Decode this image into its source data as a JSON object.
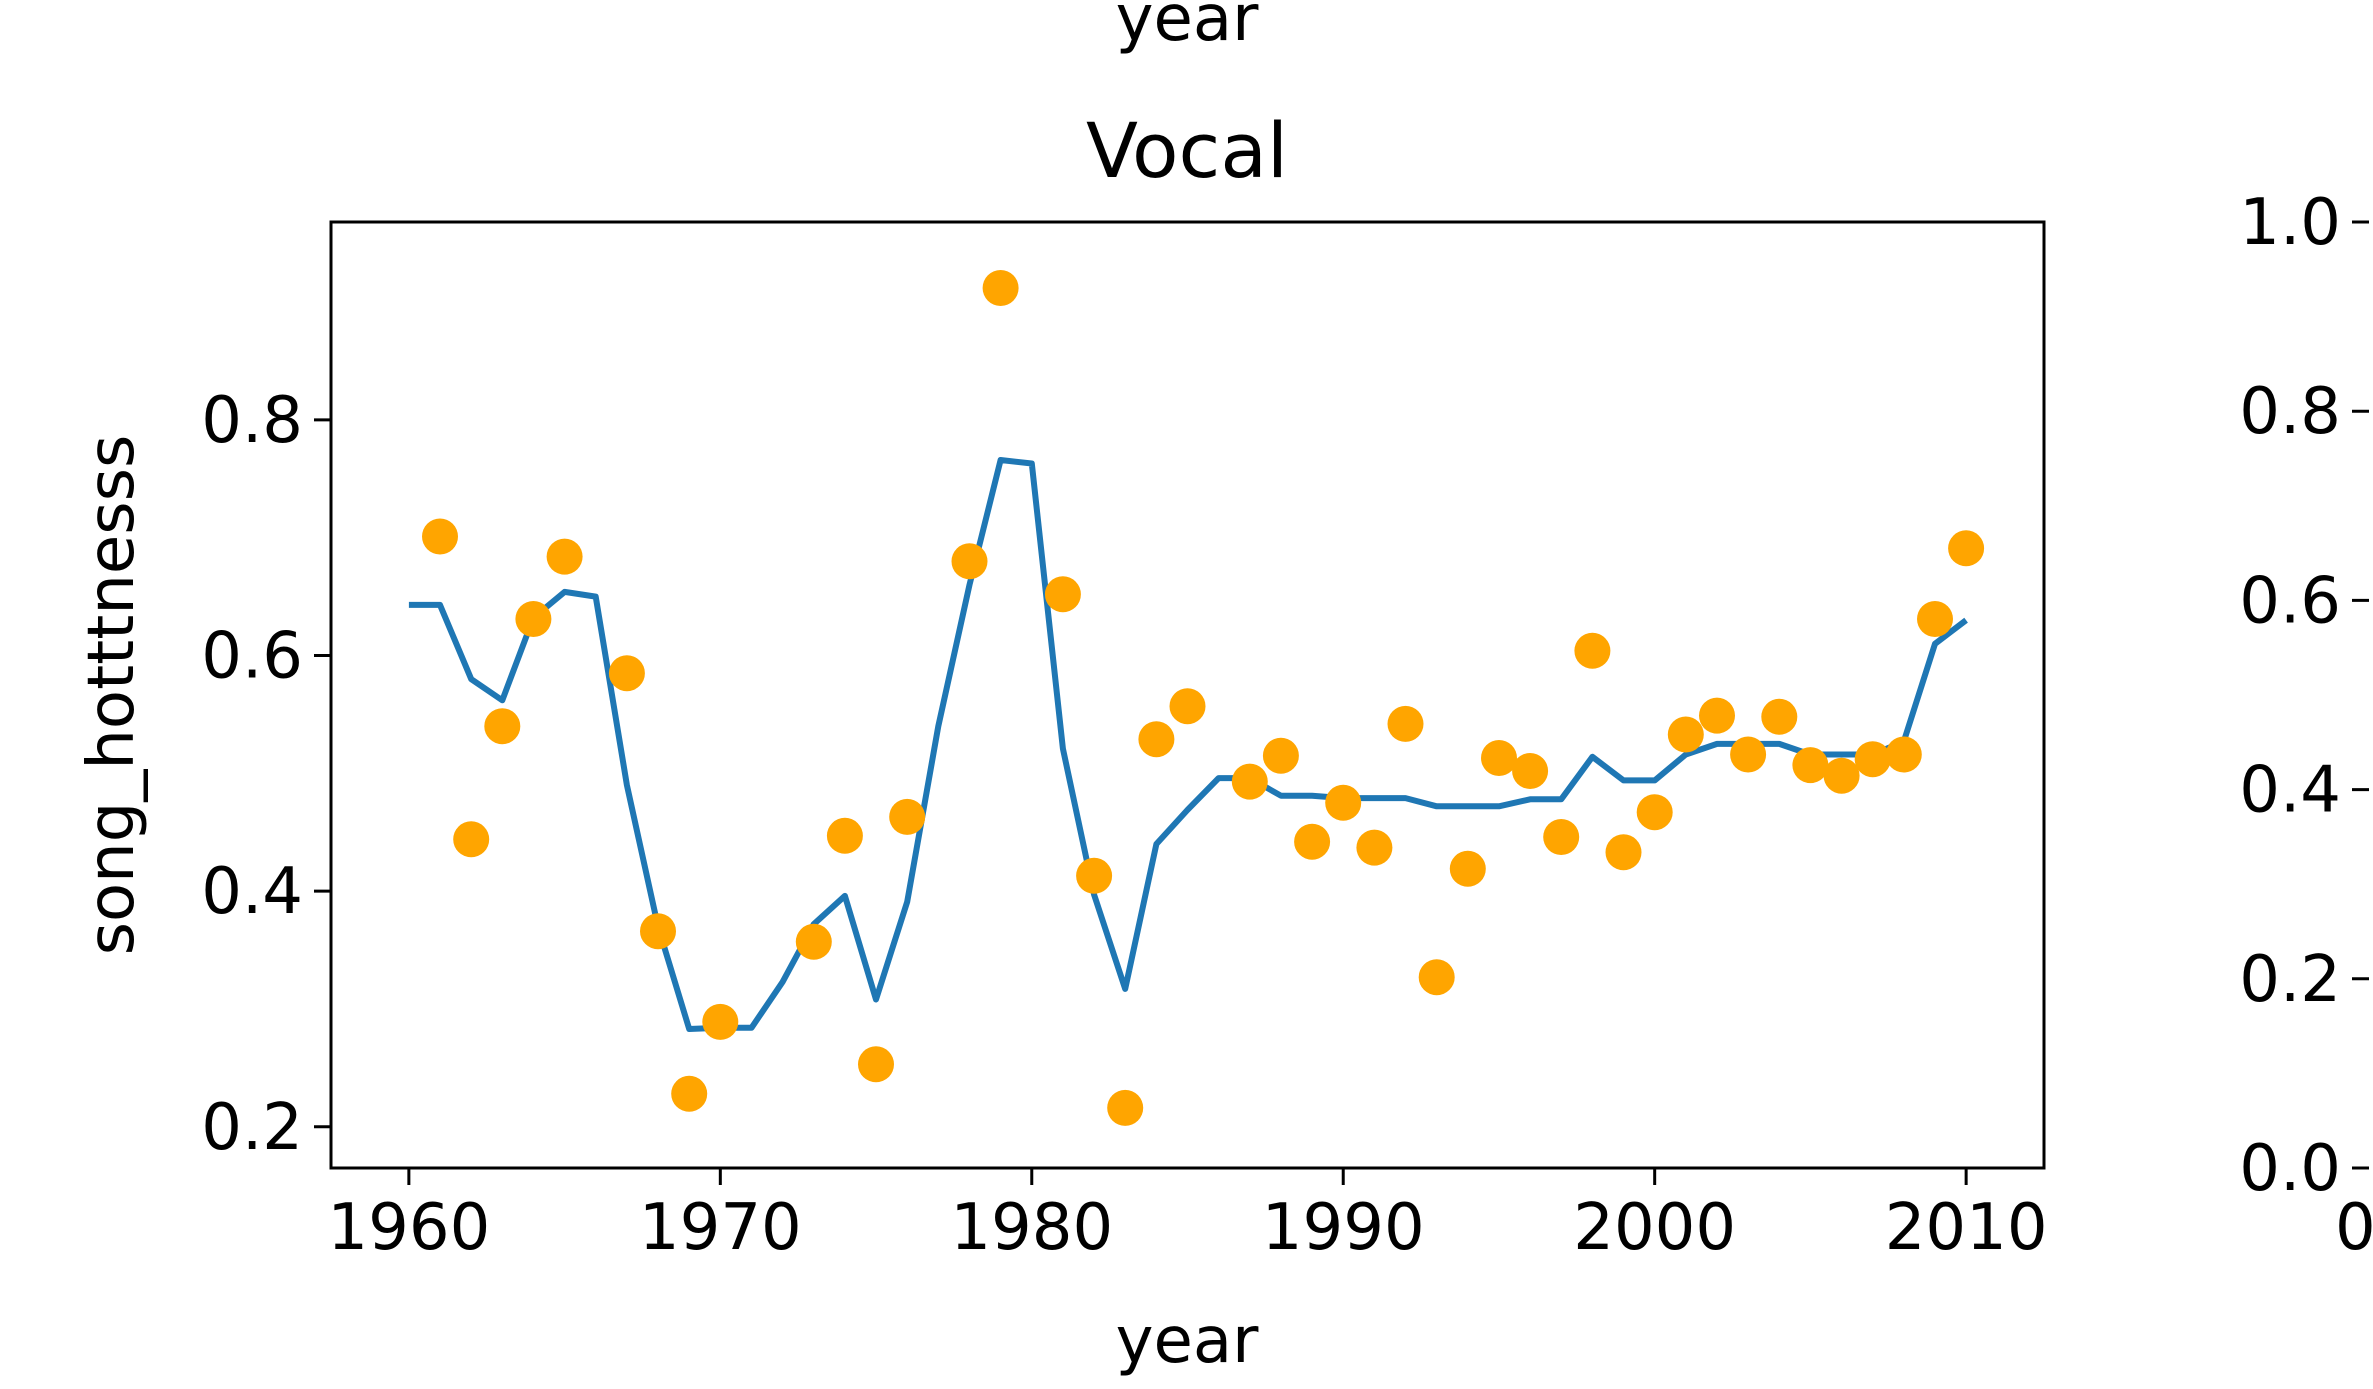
{
  "top_fragment": {
    "xlabel": "year"
  },
  "chart_data": [
    {
      "type": "scatter",
      "title": "Vocal",
      "xlabel": "year",
      "ylabel": "song_hotttnesss",
      "xlim": [
        1957.5,
        2012.5
      ],
      "ylim": [
        0.165,
        0.968
      ],
      "x_ticks": [
        1960,
        1970,
        1980,
        1990,
        2000,
        2010
      ],
      "x_tick_labels": [
        "1960",
        "1970",
        "1980",
        "1990",
        "2000",
        "2010"
      ],
      "y_ticks": [
        0.2,
        0.4,
        0.6,
        0.8
      ],
      "y_tick_labels": [
        "0.2",
        "0.4",
        "0.6",
        "0.8"
      ],
      "grid": false,
      "colors": {
        "points": "#FFA500",
        "line": "#1f77b4"
      },
      "series": [
        {
          "type": "scatter",
          "points": [
            [
              1961,
              0.701
            ],
            [
              1962,
              0.444
            ],
            [
              1963,
              0.54
            ],
            [
              1964,
              0.631
            ],
            [
              1965,
              0.684
            ],
            [
              1967,
              0.585
            ],
            [
              1968,
              0.366
            ],
            [
              1969,
              0.228
            ],
            [
              1970,
              0.289
            ],
            [
              1973,
              0.357
            ],
            [
              1974,
              0.447
            ],
            [
              1975,
              0.253
            ],
            [
              1976,
              0.463
            ],
            [
              1978,
              0.68
            ],
            [
              1979,
              0.912
            ],
            [
              1981,
              0.652
            ],
            [
              1982,
              0.413
            ],
            [
              1983,
              0.216
            ],
            [
              1984,
              0.529
            ],
            [
              1985,
              0.557
            ],
            [
              1987,
              0.493
            ],
            [
              1988,
              0.515
            ],
            [
              1989,
              0.442
            ],
            [
              1990,
              0.475
            ],
            [
              1991,
              0.437
            ],
            [
              1992,
              0.542
            ],
            [
              1993,
              0.327
            ],
            [
              1994,
              0.419
            ],
            [
              1995,
              0.513
            ],
            [
              1996,
              0.502
            ],
            [
              1997,
              0.446
            ],
            [
              1998,
              0.604
            ],
            [
              1999,
              0.433
            ],
            [
              2000,
              0.467
            ],
            [
              2001,
              0.533
            ],
            [
              2002,
              0.549
            ],
            [
              2003,
              0.516
            ],
            [
              2004,
              0.548
            ],
            [
              2005,
              0.507
            ],
            [
              2006,
              0.498
            ],
            [
              2007,
              0.512
            ],
            [
              2008,
              0.516
            ],
            [
              2009,
              0.631
            ],
            [
              2010,
              0.691
            ]
          ]
        },
        {
          "type": "line",
          "points": [
            [
              1960,
              0.643
            ],
            [
              1961,
              0.643
            ],
            [
              1962,
              0.58
            ],
            [
              1963,
              0.562
            ],
            [
              1964,
              0.632
            ],
            [
              1965,
              0.654
            ],
            [
              1966,
              0.65
            ],
            [
              1967,
              0.49
            ],
            [
              1968,
              0.37
            ],
            [
              1969,
              0.283
            ],
            [
              1970,
              0.284
            ],
            [
              1971,
              0.284
            ],
            [
              1972,
              0.323
            ],
            [
              1973,
              0.372
            ],
            [
              1974,
              0.396
            ],
            [
              1975,
              0.308
            ],
            [
              1976,
              0.391
            ],
            [
              1977,
              0.54
            ],
            [
              1978,
              0.66
            ],
            [
              1979,
              0.766
            ],
            [
              1980,
              0.763
            ],
            [
              1981,
              0.521
            ],
            [
              1982,
              0.397
            ],
            [
              1983,
              0.317
            ],
            [
              1984,
              0.44
            ],
            [
              1985,
              0.469
            ],
            [
              1986,
              0.496
            ],
            [
              1987,
              0.496
            ],
            [
              1988,
              0.481
            ],
            [
              1989,
              0.481
            ],
            [
              1990,
              0.479
            ],
            [
              1991,
              0.479
            ],
            [
              1992,
              0.479
            ],
            [
              1993,
              0.472
            ],
            [
              1994,
              0.472
            ],
            [
              1995,
              0.472
            ],
            [
              1996,
              0.478
            ],
            [
              1997,
              0.478
            ],
            [
              1998,
              0.514
            ],
            [
              1999,
              0.494
            ],
            [
              2000,
              0.494
            ],
            [
              2001,
              0.516
            ],
            [
              2002,
              0.525
            ],
            [
              2003,
              0.525
            ],
            [
              2004,
              0.525
            ],
            [
              2005,
              0.516
            ],
            [
              2006,
              0.516
            ],
            [
              2007,
              0.516
            ],
            [
              2008,
              0.527
            ],
            [
              2009,
              0.61
            ],
            [
              2010,
              0.63
            ]
          ]
        }
      ]
    },
    {
      "type": "scatter",
      "partial": true,
      "ylim": [
        0.0,
        1.0
      ],
      "y_ticks": [
        0.0,
        0.2,
        0.4,
        0.6,
        0.8,
        1.0
      ],
      "y_tick_labels": [
        "0.0",
        "0.2",
        "0.4",
        "0.6",
        "0.8",
        "1.0"
      ],
      "x_tick_labels": [
        "0"
      ]
    }
  ]
}
